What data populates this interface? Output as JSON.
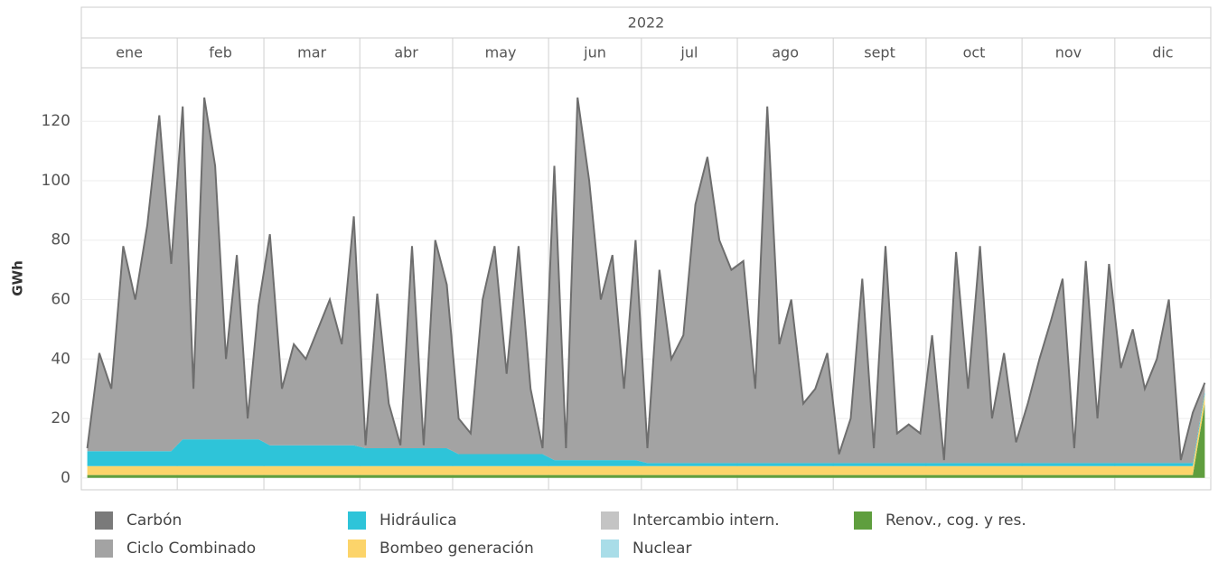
{
  "chart_data": {
    "type": "area",
    "year": "2022",
    "categories": [
      "ene",
      "feb",
      "mar",
      "abr",
      "may",
      "jun",
      "jul",
      "ago",
      "sept",
      "oct",
      "nov",
      "dic"
    ],
    "y_label": "GWh",
    "ylim": [
      -4,
      138
    ],
    "yticks": [
      0,
      20,
      40,
      60,
      80,
      100,
      120
    ],
    "grid": true,
    "series": [
      {
        "name": "Carbón",
        "color": "#7a7a7a",
        "values": [
          [
            0.5,
            0.5,
            0.5,
            0.5,
            0.5,
            0.5,
            0.5,
            0.5
          ],
          [
            0.5,
            0.5,
            0.5,
            0.5,
            0.5,
            0.5,
            0.5,
            0.5
          ],
          [
            0.5,
            0.5,
            0.5,
            0.5,
            0.5,
            0.5,
            0.5,
            0.5
          ],
          [
            0.5,
            0.5,
            0.5,
            0.5,
            0.5,
            0.5,
            0.5,
            0.5
          ],
          [
            0.5,
            0.5,
            0.5,
            0.5,
            0.5,
            0.5,
            0.5,
            0.5
          ],
          [
            0.5,
            0.5,
            0.5,
            0.5,
            0.5,
            0.5,
            0.5,
            0.5
          ],
          [
            0.5,
            0.5,
            0.5,
            0.5,
            0.5,
            0.5,
            0.5,
            0.5
          ],
          [
            0.5,
            0.5,
            0.5,
            0.5,
            0.5,
            0.5,
            0.5,
            0.5
          ],
          [
            0.5,
            0.5,
            0.5,
            0.5,
            0.5,
            0.5,
            0.5,
            0.5
          ],
          [
            0.5,
            0.5,
            0.5,
            0.5,
            0.5,
            0.5,
            0.5,
            0.5
          ],
          [
            0.5,
            0.5,
            0.5,
            0.5,
            0.5,
            0.5,
            0.5,
            0.5
          ],
          [
            0.5,
            0.5,
            0.5,
            0.5,
            0.5,
            0.5,
            0.5,
            0.5
          ]
        ]
      },
      {
        "name": "Ciclo Combinado",
        "color": "#a3a3a3",
        "values": [
          [
            0.5,
            32.5,
            20.5,
            68.5,
            50.5,
            75.5,
            112.5,
            62.5
          ],
          [
            111.5,
            16.5,
            114.5,
            91.5,
            26.5,
            61.5,
            6.5,
            44.5
          ],
          [
            70.5,
            18.5,
            33.5,
            28.5,
            38.5,
            48.5,
            33.5,
            76.5
          ],
          [
            0.5,
            51.5,
            14.5,
            0.5,
            67.5,
            0.5,
            69.5,
            54.5
          ],
          [
            11.5,
            6.5,
            51.5,
            69.5,
            26.5,
            69.5,
            21.5,
            1.5
          ],
          [
            98.5,
            3.5,
            121.5,
            93.5,
            53.5,
            68.5,
            23.5,
            73.5
          ],
          [
            4.5,
            64.5,
            34.5,
            42.5,
            86.5,
            102.5,
            74.5,
            64.5
          ],
          [
            67.5,
            24.5,
            119.5,
            39.5,
            54.5,
            19.5,
            24.5,
            36.5
          ],
          [
            2.5,
            14.5,
            61.5,
            4.5,
            72.5,
            9.5,
            12.5,
            9.5
          ],
          [
            42.5,
            0.5,
            70.5,
            24.5,
            72.5,
            14.5,
            36.5,
            6.5
          ],
          [
            19.5,
            34.5,
            47.5,
            61.5,
            4.5,
            67.5,
            14.5,
            66.5
          ],
          [
            31.5,
            44.5,
            24.5,
            34.5,
            54.5,
            0.5,
            16.5,
            2.5
          ]
        ]
      },
      {
        "name": "Hidráulica",
        "color": "#2ec4d9",
        "values": [
          [
            5,
            5,
            5,
            5,
            5,
            5,
            5,
            5
          ],
          [
            9,
            9,
            9,
            9,
            9,
            9,
            9,
            9
          ],
          [
            7,
            7,
            7,
            7,
            7,
            7,
            7,
            7
          ],
          [
            6,
            6,
            6,
            6,
            6,
            6,
            6,
            6
          ],
          [
            4,
            4,
            4,
            4,
            4,
            4,
            4,
            4
          ],
          [
            2,
            2,
            2,
            2,
            2,
            2,
            2,
            2
          ],
          [
            1,
            1,
            1,
            1,
            1,
            1,
            1,
            1
          ],
          [
            1,
            1,
            1,
            1,
            1,
            1,
            1,
            1
          ],
          [
            1,
            1,
            1,
            1,
            1,
            1,
            1,
            1
          ],
          [
            1,
            1,
            1,
            1,
            1,
            1,
            1,
            1
          ],
          [
            1,
            1,
            1,
            1,
            1,
            1,
            1,
            1
          ],
          [
            1,
            1,
            1,
            1,
            1,
            1,
            1,
            1
          ]
        ]
      },
      {
        "name": "Bombeo generación",
        "color": "#fcd46a",
        "values": [
          [
            3,
            3,
            3,
            3,
            3,
            3,
            3,
            3
          ],
          [
            3,
            3,
            3,
            3,
            3,
            3,
            3,
            3
          ],
          [
            3,
            3,
            3,
            3,
            3,
            3,
            3,
            3
          ],
          [
            3,
            3,
            3,
            3,
            3,
            3,
            3,
            3
          ],
          [
            3,
            3,
            3,
            3,
            3,
            3,
            3,
            3
          ],
          [
            3,
            3,
            3,
            3,
            3,
            3,
            3,
            3
          ],
          [
            3,
            3,
            3,
            3,
            3,
            3,
            3,
            3
          ],
          [
            3,
            3,
            3,
            3,
            3,
            3,
            3,
            3
          ],
          [
            3,
            3,
            3,
            3,
            3,
            3,
            3,
            3
          ],
          [
            3,
            3,
            3,
            3,
            3,
            3,
            3,
            3
          ],
          [
            3,
            3,
            3,
            3,
            3,
            3,
            3,
            3
          ],
          [
            3,
            3,
            3,
            3,
            3,
            3,
            3,
            3
          ]
        ]
      },
      {
        "name": "Intercambio intern.",
        "color": "#c4c4c4",
        "values": [
          [
            0,
            0,
            0,
            0,
            0,
            0,
            0,
            0
          ],
          [
            0,
            0,
            0,
            0,
            0,
            0,
            0,
            0
          ],
          [
            0,
            0,
            0,
            0,
            0,
            0,
            0,
            0
          ],
          [
            0,
            0,
            0,
            0,
            0,
            0,
            0,
            0
          ],
          [
            0,
            0,
            0,
            0,
            0,
            0,
            0,
            0
          ],
          [
            0,
            0,
            0,
            0,
            0,
            0,
            0,
            0
          ],
          [
            0,
            0,
            0,
            0,
            0,
            0,
            0,
            0
          ],
          [
            0,
            0,
            0,
            0,
            0,
            0,
            0,
            0
          ],
          [
            0,
            0,
            0,
            0,
            0,
            0,
            0,
            0
          ],
          [
            0,
            0,
            0,
            0,
            0,
            0,
            0,
            0
          ],
          [
            0,
            0,
            0,
            0,
            0,
            0,
            0,
            0
          ],
          [
            0,
            0,
            0,
            0,
            0,
            0,
            0,
            0
          ]
        ]
      },
      {
        "name": "Nuclear",
        "color": "#a9dde8",
        "values": [
          [
            0,
            0,
            0,
            0,
            0,
            0,
            0,
            0
          ],
          [
            0,
            0,
            0,
            0,
            0,
            0,
            0,
            0
          ],
          [
            0,
            0,
            0,
            0,
            0,
            0,
            0,
            0
          ],
          [
            0,
            0,
            0,
            0,
            0,
            0,
            0,
            0
          ],
          [
            0,
            0,
            0,
            0,
            0,
            0,
            0,
            0
          ],
          [
            0,
            0,
            0,
            0,
            0,
            0,
            0,
            0
          ],
          [
            0,
            0,
            0,
            0,
            0,
            0,
            0,
            0
          ],
          [
            0,
            0,
            0,
            0,
            0,
            0,
            0,
            0
          ],
          [
            0,
            0,
            0,
            0,
            0,
            0,
            0,
            0
          ],
          [
            0,
            0,
            0,
            0,
            0,
            0,
            0,
            0
          ],
          [
            0,
            0,
            0,
            0,
            0,
            0,
            0,
            0
          ],
          [
            0,
            0,
            0,
            0,
            0,
            0,
            0,
            0
          ]
        ]
      },
      {
        "name": "Renov., cog. y res.",
        "color": "#5f9e3e",
        "values": [
          [
            1,
            1,
            1,
            1,
            1,
            1,
            1,
            1
          ],
          [
            1,
            1,
            1,
            1,
            1,
            1,
            1,
            1
          ],
          [
            1,
            1,
            1,
            1,
            1,
            1,
            1,
            1
          ],
          [
            1,
            1,
            1,
            1,
            1,
            1,
            1,
            1
          ],
          [
            1,
            1,
            1,
            1,
            1,
            1,
            1,
            1
          ],
          [
            1,
            1,
            1,
            1,
            1,
            1,
            1,
            1
          ],
          [
            1,
            1,
            1,
            1,
            1,
            1,
            1,
            1
          ],
          [
            1,
            1,
            1,
            1,
            1,
            1,
            1,
            1
          ],
          [
            1,
            1,
            1,
            1,
            1,
            1,
            1,
            1
          ],
          [
            1,
            1,
            1,
            1,
            1,
            1,
            1,
            1
          ],
          [
            1,
            1,
            1,
            1,
            1,
            1,
            1,
            1
          ],
          [
            1,
            1,
            1,
            1,
            1,
            1,
            1,
            25
          ]
        ]
      }
    ]
  }
}
